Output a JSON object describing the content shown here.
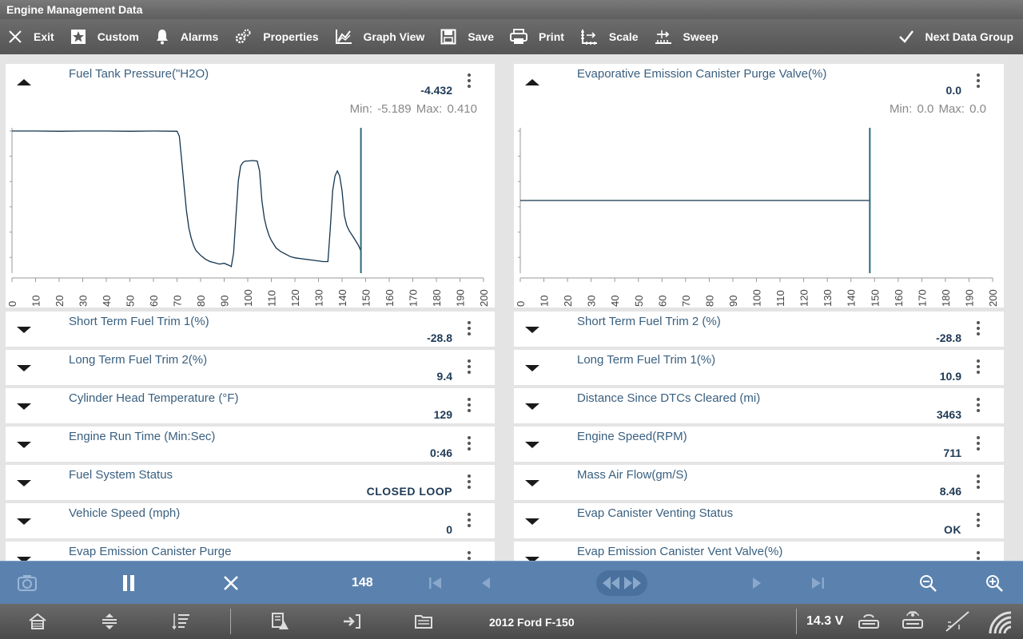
{
  "window": {
    "title": "Engine Management Data"
  },
  "toolbar": {
    "exit": "Exit",
    "custom": "Custom",
    "alarms": "Alarms",
    "properties": "Properties",
    "graph_view": "Graph View",
    "save": "Save",
    "print": "Print",
    "scale": "Scale",
    "sweep": "Sweep",
    "next_data_group": "Next Data Group"
  },
  "graphs": [
    {
      "name": "Fuel Tank Pressure(\"H2O)",
      "value": "-4.432",
      "minmax": "Min: -5.189   Max: 0.410",
      "chart_data": {
        "type": "line",
        "x_ticks": [
          0,
          10,
          20,
          30,
          40,
          50,
          60,
          70,
          80,
          90,
          100,
          110,
          120,
          130,
          140,
          150,
          160,
          170,
          180,
          190,
          200
        ],
        "xlim": [
          0,
          200
        ],
        "ylim": [
          -5.189,
          0.41
        ],
        "cursor_x": 148,
        "x": [
          0,
          10,
          20,
          30,
          40,
          50,
          60,
          70,
          71,
          72,
          73,
          74,
          75,
          76,
          77,
          78,
          80,
          82,
          84,
          86,
          88,
          90,
          92,
          93,
          94,
          95,
          96,
          97,
          98,
          99,
          100,
          102,
          104,
          105,
          106,
          107,
          108,
          109,
          110,
          112,
          114,
          116,
          118,
          120,
          124,
          128,
          132,
          134,
          135,
          136,
          137,
          138,
          139,
          140,
          141,
          142,
          143,
          145,
          147,
          148
        ],
        "values": [
          0.41,
          0.41,
          0.4,
          0.41,
          0.41,
          0.4,
          0.41,
          0.4,
          0.2,
          -0.8,
          -1.8,
          -2.8,
          -3.5,
          -3.9,
          -4.2,
          -4.4,
          -4.6,
          -4.75,
          -4.85,
          -4.9,
          -4.95,
          -4.92,
          -5.0,
          -5.05,
          -4.5,
          -3.0,
          -1.6,
          -1.0,
          -0.85,
          -0.8,
          -0.8,
          -0.78,
          -0.8,
          -1.2,
          -2.4,
          -3.1,
          -3.5,
          -3.8,
          -4.0,
          -4.3,
          -4.45,
          -4.55,
          -4.65,
          -4.7,
          -4.75,
          -4.8,
          -4.85,
          -4.85,
          -3.5,
          -2.0,
          -1.4,
          -1.2,
          -1.4,
          -2.0,
          -3.0,
          -3.4,
          -3.6,
          -3.9,
          -4.2,
          -4.432
        ]
      }
    },
    {
      "name": "Evaporative Emission Canister Purge Valve(%)",
      "value": "0.0",
      "minmax": "Min: 0.0   Max: 0.0",
      "chart_data": {
        "type": "line",
        "x_ticks": [
          0,
          10,
          20,
          30,
          40,
          50,
          60,
          70,
          80,
          90,
          100,
          110,
          120,
          130,
          140,
          150,
          160,
          170,
          180,
          190,
          200
        ],
        "xlim": [
          0,
          200
        ],
        "ylim": [
          -1,
          1
        ],
        "cursor_x": 148,
        "x": [
          0,
          148
        ],
        "values": [
          0.0,
          0.0
        ]
      }
    }
  ],
  "pids": [
    {
      "name": "Short Term Fuel Trim 1(%)",
      "value": "-28.8"
    },
    {
      "name": "Short Term Fuel Trim 2 (%)",
      "value": "-28.8"
    },
    {
      "name": "Long Term Fuel Trim 2(%)",
      "value": "9.4"
    },
    {
      "name": "Long Term Fuel Trim 1(%)",
      "value": "10.9"
    },
    {
      "name": "Cylinder Head Temperature (°F)",
      "value": "129"
    },
    {
      "name": "Distance Since DTCs Cleared (mi)",
      "value": "3463"
    },
    {
      "name": "Engine Run Time (Min:Sec)",
      "value": "0:46"
    },
    {
      "name": "Engine Speed(RPM)",
      "value": "711"
    },
    {
      "name": "Fuel System Status",
      "value": "CLOSED LOOP"
    },
    {
      "name": "Mass Air Flow(gm/S)",
      "value": "8.46"
    },
    {
      "name": "Vehicle Speed (mph)",
      "value": "0"
    },
    {
      "name": "Evap Canister Venting Status",
      "value": "OK"
    },
    {
      "name": "Evap Emission Canister Purge",
      "value": ""
    },
    {
      "name": "Evap Emission Canister Vent Valve(%)",
      "value": ""
    }
  ],
  "playback": {
    "frame": "148"
  },
  "status": {
    "vehicle": "2012 Ford F-150",
    "voltage": "14.3 V"
  },
  "colors": {
    "accent": "#5b82ae",
    "trace": "#12344e",
    "cursor": "#2a6a7a",
    "label": "#3a6080"
  }
}
